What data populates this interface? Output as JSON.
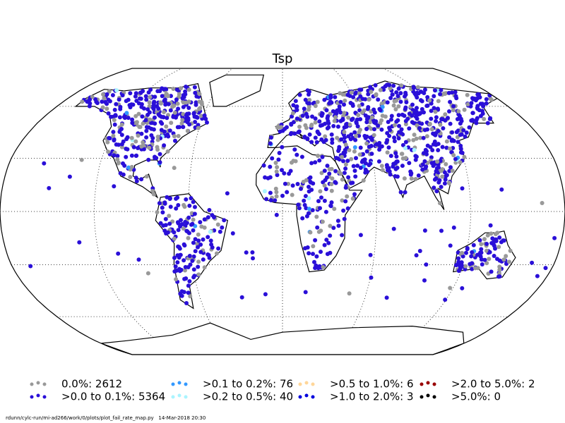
{
  "title": "Tsp",
  "legend": [
    {
      "label": "0.0%: 2612",
      "color": "#999999"
    },
    {
      "label": ">0.0 to 0.1%: 5364",
      "color": "#2a0fd8"
    },
    {
      "label": ">0.1 to 0.2%: 76",
      "color": "#3399ff"
    },
    {
      "label": ">0.2 to 0.5%: 40",
      "color": "#aaf4ff"
    },
    {
      "label": ">0.5 to 1.0%: 6",
      "color": "#ffd699"
    },
    {
      "label": ">1.0 to 2.0%: 3",
      "color": "#0000dd"
    },
    {
      "label": ">2.0 to 5.0%: 2",
      "color": "#990000"
    },
    {
      "label": ">5.0%: 0",
      "color": "#000000"
    }
  ],
  "footer": "rdunn/cylc-run/mi-ad266/work/0/plots/plot_fail_rate_map.py   14-Mar-2018 20:30"
}
